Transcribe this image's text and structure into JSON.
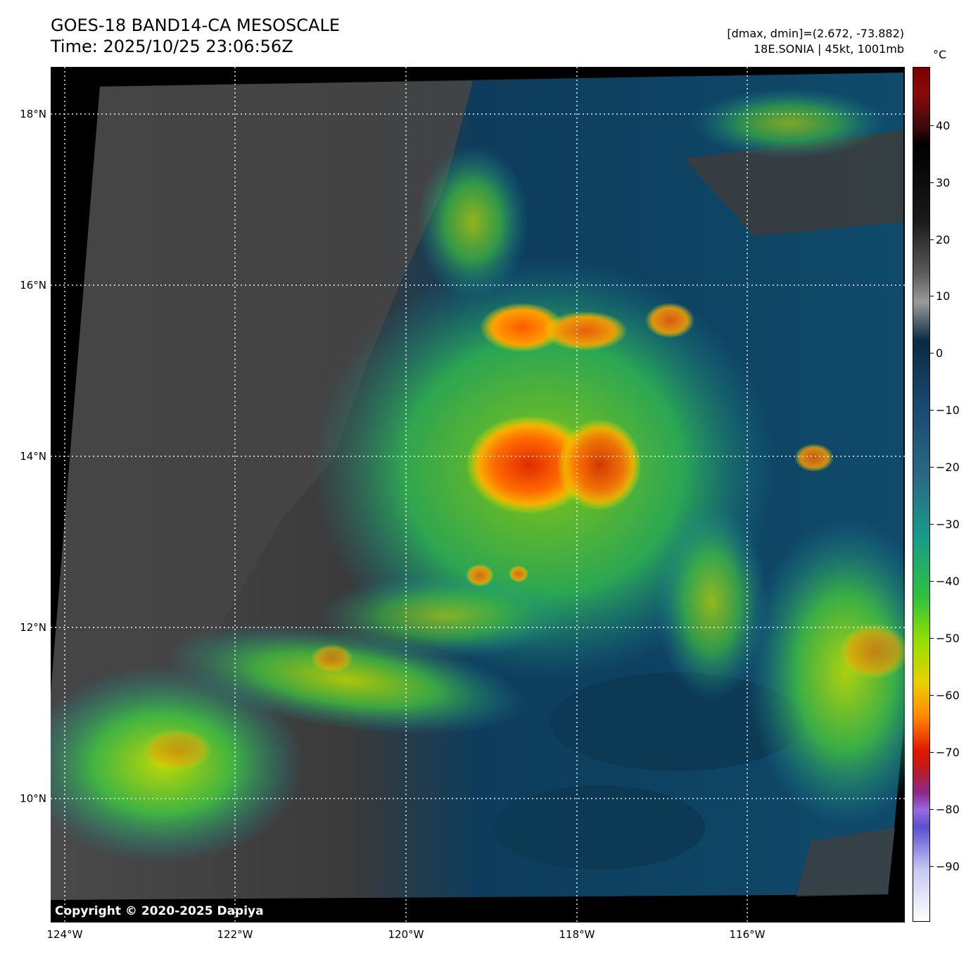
{
  "header": {
    "title_line1": "GOES-18 BAND14-CA MESOSCALE",
    "title_line2": "Time: 2025/10/25 23:06:56Z",
    "dmax_dmin": "[dmax, dmin]=(2.672, -73.882)",
    "storm_info": "18E.SONIA | 45kt, 1001mb"
  },
  "map": {
    "copyright": "Copyright © 2020-2025 Dapiya",
    "lat_labels": [
      "18°N",
      "16°N",
      "14°N",
      "12°N",
      "10°N"
    ],
    "lon_labels": [
      "124°W",
      "122°W",
      "120°W",
      "118°W",
      "116°W"
    ]
  },
  "colorbar": {
    "unit": "°C",
    "tick_labels": [
      "40",
      "30",
      "20",
      "10",
      "0",
      "−10",
      "−20",
      "−30",
      "−40",
      "−50",
      "−60",
      "−70",
      "−80",
      "−90"
    ]
  }
}
